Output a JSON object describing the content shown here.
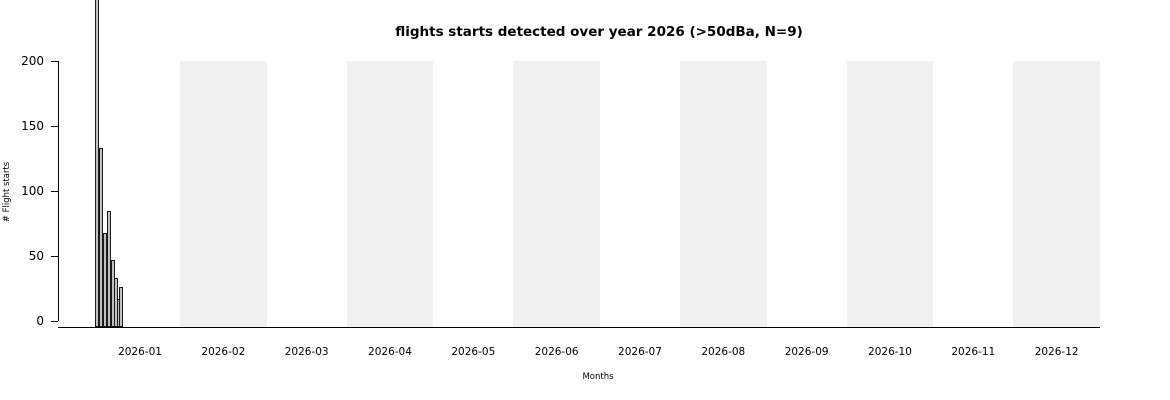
{
  "title": "flights starts detected over year 2026 (>50dBa, N=9)",
  "chart_data": {
    "type": "bar",
    "title": "flights starts detected over year 2026 (>50dBa, N=9)",
    "xlabel": "Months",
    "ylabel": "# Flight starts",
    "x_tick_labels": [
      "2026-01",
      "2026-02",
      "2026-03",
      "2026-04",
      "2026-05",
      "2026-06",
      "2026-07",
      "2026-08",
      "2026-09",
      "2026-10",
      "2026-11",
      "2026-12"
    ],
    "y_ticks": [
      0,
      50,
      100,
      150,
      200
    ],
    "axis_ranges": {
      "y_visible": [
        0,
        200
      ],
      "x_months": 12
    },
    "grid": false,
    "legend": null,
    "shaded_months": [
      "2026-02",
      "2026-04",
      "2026-06",
      "2026-08",
      "2026-10",
      "2026-12"
    ],
    "shaded_band_height_value": 200,
    "bars": [
      {
        "x": 94.5,
        "w": 4,
        "value": 262,
        "clipped_at_top": true
      },
      {
        "x": 98.5,
        "w": 4,
        "value": 133
      },
      {
        "x": 102.5,
        "w": 4,
        "value": 68
      },
      {
        "x": 106.5,
        "w": 4,
        "value": 85
      },
      {
        "x": 110.5,
        "w": 4,
        "value": 47
      },
      {
        "x": 114,
        "w": 4,
        "value": 33
      },
      {
        "x": 116.5,
        "w": 4,
        "value": 17
      },
      {
        "x": 119,
        "w": 4,
        "value": 26
      }
    ],
    "bars_note": "Cluster of thin daily bars at the very start of the year; the first bar extends beyond the top edge of the image (value greater than ~245).",
    "colors": {
      "background": "#ffffff",
      "band": "#f0f0f0",
      "bar_fill": "#c0c0c0",
      "bar_edge": "#1a1a1a",
      "axis": "#000000",
      "text": "#000000"
    }
  }
}
